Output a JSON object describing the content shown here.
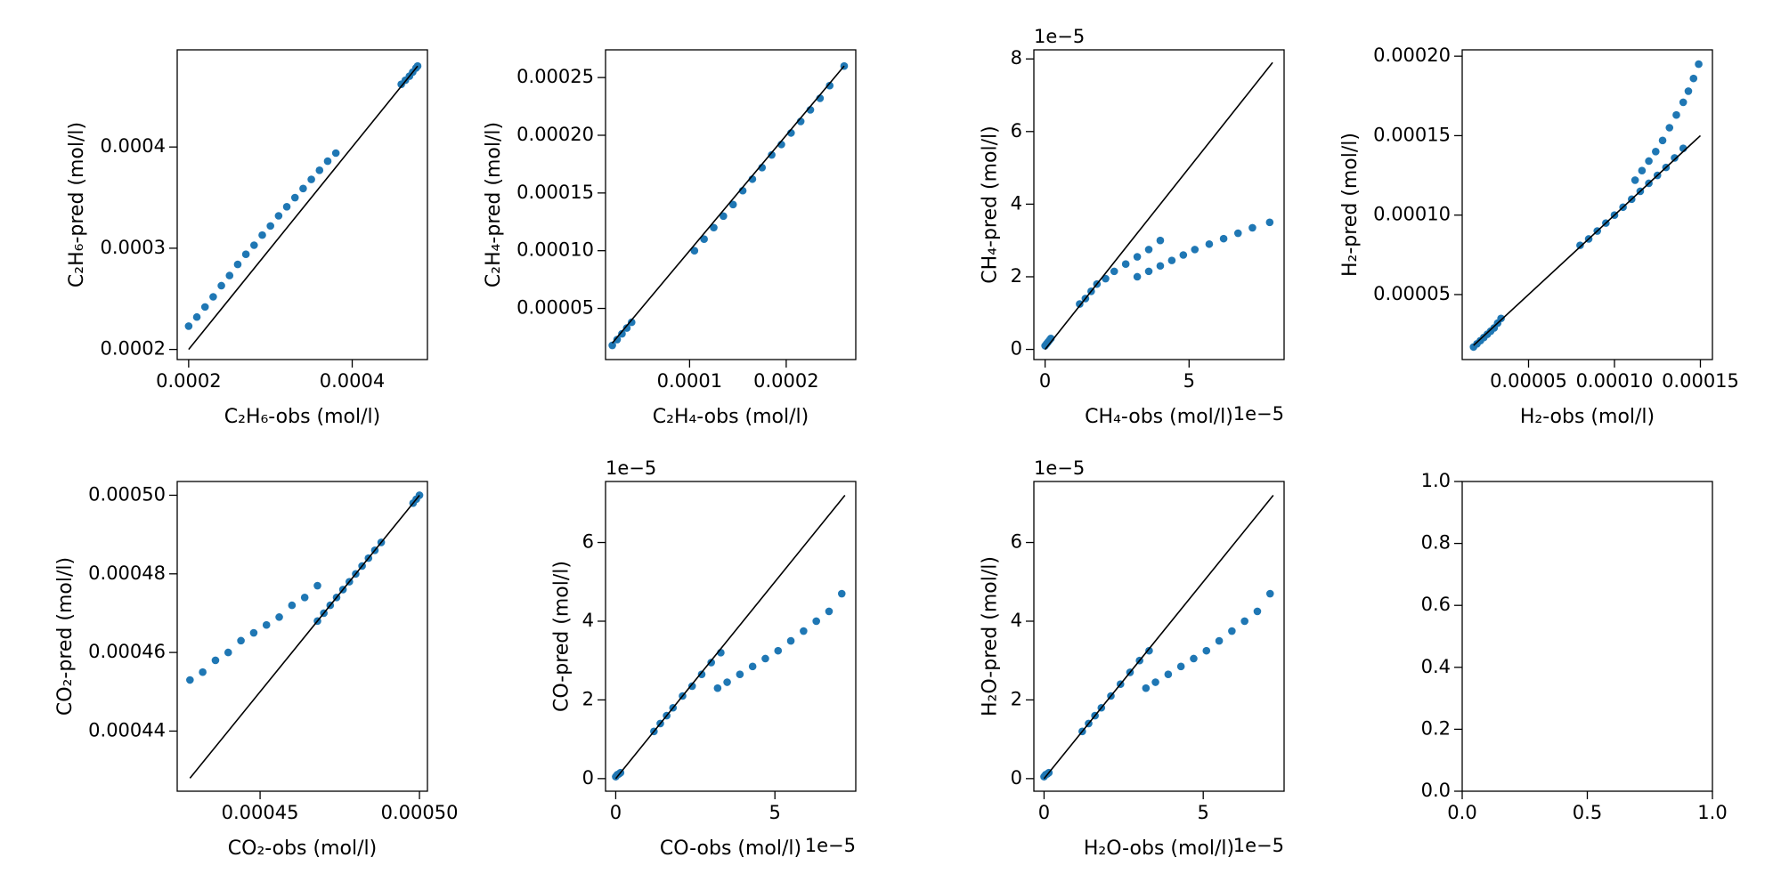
{
  "chart_data": [
    {
      "type": "scatter",
      "xlabel": "C₂H₆-obs (mol/l)",
      "ylabel": "C₂H₆-pred (mol/l)",
      "xlim": [
        0.000186,
        0.000492
      ],
      "ylim": [
        0.00019,
        0.000496
      ],
      "xticks": [
        0.0002,
        0.0004
      ],
      "yticks": [
        0.0002,
        0.0003,
        0.0004
      ],
      "series": [
        {
          "color": "#1f77b4",
          "x": [
            0.0002,
            0.00021,
            0.00022,
            0.00023,
            0.00024,
            0.00025,
            0.00026,
            0.00027,
            0.00028,
            0.00029,
            0.0003,
            0.00031,
            0.00032,
            0.00033,
            0.00034,
            0.00035,
            0.00036,
            0.00037,
            0.00038,
            0.00046,
            0.000465,
            0.00047,
            0.000474,
            0.000478,
            0.00048
          ],
          "y": [
            0.000223,
            0.000232,
            0.000242,
            0.000252,
            0.000263,
            0.000273,
            0.000284,
            0.000294,
            0.000303,
            0.000313,
            0.000322,
            0.000332,
            0.000341,
            0.00035,
            0.000359,
            0.000368,
            0.000377,
            0.000386,
            0.000394,
            0.000462,
            0.000466,
            0.00047,
            0.000474,
            0.000478,
            0.00048
          ]
        },
        {
          "type": "line",
          "color": "#000000",
          "x": [
            0.0002,
            0.00048
          ],
          "y": [
            0.0002,
            0.00048
          ]
        }
      ]
    },
    {
      "type": "scatter",
      "xlabel": "C₂H₄-obs (mol/l)",
      "ylabel": "C₂H₄-pred (mol/l)",
      "xlim": [
        1.3e-05,
        0.000272
      ],
      "ylim": [
        5.7e-06,
        0.000274
      ],
      "xticks": [
        0.0001,
        0.0002
      ],
      "yticks": [
        5e-05,
        {
          "value": 0.0001,
          "label": "0.00010"
        },
        0.00015,
        {
          "value": 0.0002,
          "label": "0.00020"
        },
        0.00025
      ],
      "series": [
        {
          "color": "#1f77b4",
          "x": [
            2e-05,
            2.5e-05,
            3e-05,
            3.5e-05,
            4e-05,
            0.000105,
            0.000115,
            0.000125,
            0.000135,
            0.000145,
            0.000155,
            0.000165,
            0.000175,
            0.000185,
            0.000195,
            0.000205,
            0.000215,
            0.000225,
            0.000235,
            0.000245,
            0.00026
          ],
          "y": [
            1.8e-05,
            2.3e-05,
            2.8e-05,
            3.3e-05,
            3.8e-05,
            0.0001,
            0.00011,
            0.00012,
            0.00013,
            0.00014,
            0.000152,
            0.000162,
            0.000172,
            0.000183,
            0.000192,
            0.000202,
            0.000212,
            0.000222,
            0.000232,
            0.000243,
            0.00026
          ]
        },
        {
          "type": "line",
          "color": "#000000",
          "x": [
            2e-05,
            0.00026
          ],
          "y": [
            2e-05,
            0.00026
          ]
        }
      ]
    },
    {
      "type": "scatter",
      "xlabel": "CH₄-obs (mol/l)",
      "ylabel": "CH₄-pred (mol/l)",
      "x_offset_text": "1e−5",
      "y_offset_text": "1e−5",
      "xlim": [
        -0.39,
        8.3
      ],
      "ylim": [
        -0.28,
        8.25
      ],
      "xticks": [
        0,
        5
      ],
      "yticks": [
        0,
        2,
        4,
        6,
        8
      ],
      "series": [
        {
          "color": "#1f77b4",
          "x": [
            0,
            0.05,
            0.1,
            0.15,
            0.2,
            1.2,
            1.4,
            1.6,
            1.8,
            2.1,
            2.4,
            2.8,
            3.2,
            3.6,
            4.0,
            3.2,
            3.6,
            4.0,
            4.4,
            4.8,
            5.2,
            5.7,
            6.2,
            6.7,
            7.2,
            7.8
          ],
          "y": [
            0.1,
            0.15,
            0.2,
            0.25,
            0.3,
            1.25,
            1.4,
            1.6,
            1.8,
            1.95,
            2.15,
            2.35,
            2.55,
            2.75,
            3.0,
            2.0,
            2.15,
            2.3,
            2.45,
            2.6,
            2.75,
            2.9,
            3.05,
            3.2,
            3.35,
            3.5
          ]
        },
        {
          "type": "line",
          "color": "#000000",
          "x": [
            0,
            7.9
          ],
          "y": [
            0,
            7.9
          ]
        }
      ]
    },
    {
      "type": "scatter",
      "xlabel": "H₂-obs (mol/l)",
      "ylabel": "H₂-pred (mol/l)",
      "xlim": [
        1.14e-05,
        0.000157
      ],
      "ylim": [
        9.1e-06,
        0.000204
      ],
      "xticks": [
        5e-05,
        {
          "value": 0.0001,
          "label": "0.00010"
        },
        0.00015
      ],
      "yticks": [
        5e-05,
        {
          "value": 0.0001,
          "label": "0.00010"
        },
        0.00015,
        {
          "value": 0.0002,
          "label": "0.00020"
        }
      ],
      "series": [
        {
          "color": "#1f77b4",
          "x": [
            1.8e-05,
            2e-05,
            2.2e-05,
            2.4e-05,
            2.6e-05,
            2.8e-05,
            3e-05,
            3.2e-05,
            3.4e-05,
            8e-05,
            8.5e-05,
            9e-05,
            9.5e-05,
            0.0001,
            0.000105,
            0.00011,
            0.000115,
            0.00012,
            0.000125,
            0.00013,
            0.000135,
            0.00014,
            0.000112,
            0.000116,
            0.00012,
            0.000124,
            0.000128,
            0.000132,
            0.000136,
            0.00014,
            0.000143,
            0.000146,
            0.000149
          ],
          "y": [
            1.7e-05,
            1.9e-05,
            2.1e-05,
            2.3e-05,
            2.5e-05,
            2.7e-05,
            2.9e-05,
            3.2e-05,
            3.5e-05,
            8.1e-05,
            8.5e-05,
            9e-05,
            9.5e-05,
            0.0001,
            0.000105,
            0.00011,
            0.000115,
            0.00012,
            0.000125,
            0.00013,
            0.000136,
            0.000142,
            0.000122,
            0.000128,
            0.000134,
            0.00014,
            0.000147,
            0.000155,
            0.000163,
            0.000171,
            0.000178,
            0.000186,
            0.000195
          ]
        },
        {
          "type": "line",
          "color": "#000000",
          "x": [
            1.8e-05,
            0.00015
          ],
          "y": [
            1.8e-05,
            0.00015
          ]
        }
      ]
    },
    {
      "type": "scatter",
      "xlabel": "CO₂-obs (mol/l)",
      "ylabel": "CO₂-pred (mol/l)",
      "xlim": [
        0.000424,
        0.0005025
      ],
      "ylim": [
        0.0004247,
        0.0005035
      ],
      "xticks": [
        0.00045,
        {
          "value": 0.0005,
          "label": "0.00050"
        }
      ],
      "yticks": [
        0.00044,
        0.00046,
        0.00048,
        {
          "value": 0.0005,
          "label": "0.00050"
        }
      ],
      "series": [
        {
          "color": "#1f77b4",
          "x": [
            0.000428,
            0.000432,
            0.000436,
            0.00044,
            0.000444,
            0.000448,
            0.000452,
            0.000456,
            0.00046,
            0.000464,
            0.000468,
            0.000468,
            0.00047,
            0.000472,
            0.000474,
            0.000476,
            0.000478,
            0.00048,
            0.000482,
            0.000484,
            0.000486,
            0.000488,
            0.000498,
            0.000499,
            0.0005
          ],
          "y": [
            0.000453,
            0.000455,
            0.000458,
            0.00046,
            0.000463,
            0.000465,
            0.000467,
            0.000469,
            0.000472,
            0.000474,
            0.000477,
            0.000468,
            0.00047,
            0.000472,
            0.000474,
            0.000476,
            0.000478,
            0.00048,
            0.000482,
            0.000484,
            0.000486,
            0.000488,
            0.000498,
            0.000499,
            0.0005
          ]
        },
        {
          "type": "line",
          "color": "#000000",
          "x": [
            0.000428,
            0.0005
          ],
          "y": [
            0.000428,
            0.0005
          ]
        }
      ]
    },
    {
      "type": "scatter",
      "xlabel": "CO-obs (mol/l)",
      "ylabel": "CO-pred (mol/l)",
      "x_offset_text": "1e−5",
      "y_offset_text": "1e−5",
      "xlim": [
        -0.32,
        7.54
      ],
      "ylim": [
        -0.32,
        7.55
      ],
      "xticks": [
        0,
        5
      ],
      "yticks": [
        0,
        2,
        4,
        6
      ],
      "series": [
        {
          "color": "#1f77b4",
          "x": [
            0,
            0.05,
            0.1,
            0.15,
            1.2,
            1.4,
            1.6,
            1.8,
            2.1,
            2.4,
            2.7,
            3.0,
            3.3,
            3.2,
            3.5,
            3.9,
            4.3,
            4.7,
            5.1,
            5.5,
            5.9,
            6.3,
            6.7,
            7.1
          ],
          "y": [
            0.05,
            0.1,
            0.12,
            0.15,
            1.2,
            1.4,
            1.6,
            1.8,
            2.1,
            2.35,
            2.65,
            2.95,
            3.2,
            2.3,
            2.45,
            2.65,
            2.85,
            3.05,
            3.25,
            3.5,
            3.75,
            4.0,
            4.25,
            4.7
          ]
        },
        {
          "type": "line",
          "color": "#000000",
          "x": [
            0,
            7.2
          ],
          "y": [
            0,
            7.2
          ]
        }
      ]
    },
    {
      "type": "scatter",
      "xlabel": "H₂O-obs (mol/l)",
      "ylabel": "H₂O-pred (mol/l)",
      "x_offset_text": "1e−5",
      "y_offset_text": "1e−5",
      "xlim": [
        -0.32,
        7.54
      ],
      "ylim": [
        -0.32,
        7.55
      ],
      "xticks": [
        0,
        5
      ],
      "yticks": [
        0,
        2,
        4,
        6
      ],
      "series": [
        {
          "color": "#1f77b4",
          "x": [
            0,
            0.05,
            0.1,
            0.15,
            1.2,
            1.4,
            1.6,
            1.8,
            2.1,
            2.4,
            2.7,
            3.0,
            3.3,
            3.2,
            3.5,
            3.9,
            4.3,
            4.7,
            5.1,
            5.5,
            5.9,
            6.3,
            6.7,
            7.1
          ],
          "y": [
            0.05,
            0.1,
            0.12,
            0.15,
            1.2,
            1.4,
            1.6,
            1.8,
            2.1,
            2.4,
            2.7,
            3.0,
            3.25,
            2.3,
            2.45,
            2.65,
            2.85,
            3.05,
            3.25,
            3.5,
            3.75,
            4.0,
            4.25,
            4.7
          ]
        },
        {
          "type": "line",
          "color": "#000000",
          "x": [
            0,
            7.2
          ],
          "y": [
            0,
            7.2
          ]
        }
      ]
    },
    {
      "type": "scatter",
      "xlim": [
        0,
        1
      ],
      "ylim": [
        0,
        1
      ],
      "xticks": [
        {
          "value": 0,
          "label": "0.0"
        },
        0.5,
        {
          "value": 1,
          "label": "1.0"
        }
      ],
      "yticks": [
        {
          "value": 0,
          "label": "0.0"
        },
        0.2,
        0.4,
        0.6,
        0.8,
        {
          "value": 1,
          "label": "1.0"
        }
      ],
      "series": []
    }
  ]
}
